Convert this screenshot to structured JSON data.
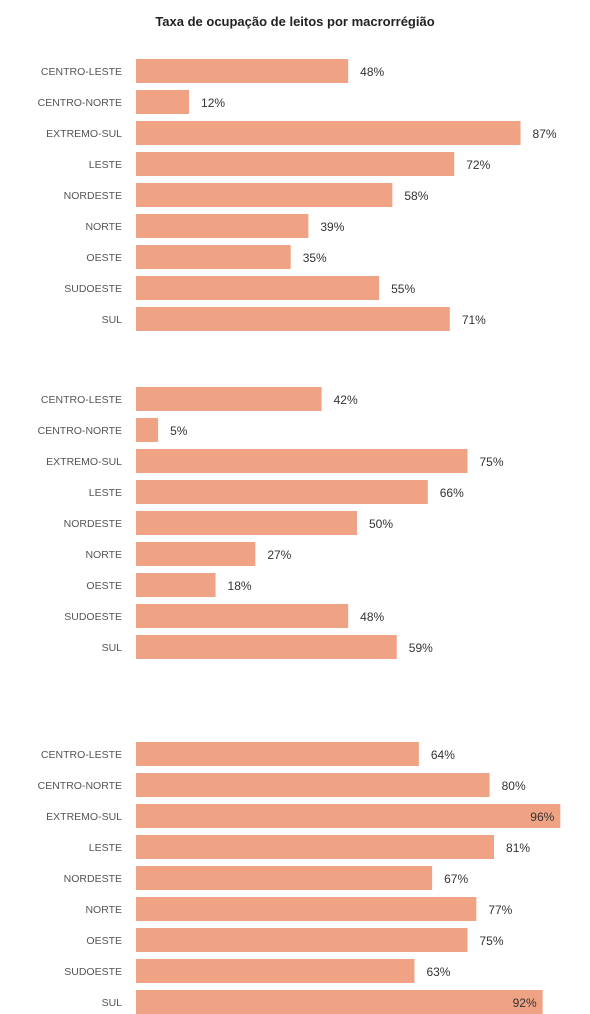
{
  "title": "Taxa de ocupação de leitos por macrorrégião",
  "colors": {
    "bar": "#F0A384",
    "label": "#555555",
    "value": "#333333"
  },
  "chart_data": [
    {
      "type": "bar",
      "orientation": "horizontal",
      "categories": [
        "CENTRO-LESTE",
        "CENTRO-NORTE",
        "EXTREMO-SUL",
        "LESTE",
        "NORDESTE",
        "NORTE",
        "OESTE",
        "SUDOESTE",
        "SUL"
      ],
      "values": [
        48,
        12,
        87,
        72,
        58,
        39,
        35,
        55,
        71
      ],
      "labels": [
        "48%",
        "12%",
        "87%",
        "72%",
        "58%",
        "39%",
        "35%",
        "55%",
        "71%"
      ],
      "xlim": [
        0,
        100
      ],
      "grid": false,
      "legend": "none"
    },
    {
      "type": "bar",
      "orientation": "horizontal",
      "categories": [
        "CENTRO-LESTE",
        "CENTRO-NORTE",
        "EXTREMO-SUL",
        "LESTE",
        "NORDESTE",
        "NORTE",
        "OESTE",
        "SUDOESTE",
        "SUL"
      ],
      "values": [
        42,
        5,
        75,
        66,
        50,
        27,
        18,
        48,
        59
      ],
      "labels": [
        "42%",
        "5%",
        "75%",
        "66%",
        "50%",
        "27%",
        "18%",
        "48%",
        "59%"
      ],
      "xlim": [
        0,
        100
      ],
      "grid": false,
      "legend": "none"
    },
    {
      "type": "bar",
      "orientation": "horizontal",
      "categories": [
        "CENTRO-LESTE",
        "CENTRO-NORTE",
        "EXTREMO-SUL",
        "LESTE",
        "NORDESTE",
        "NORTE",
        "OESTE",
        "SUDOESTE",
        "SUL"
      ],
      "values": [
        64,
        80,
        96,
        81,
        67,
        77,
        75,
        63,
        92
      ],
      "labels": [
        "64%",
        "80%",
        "96%",
        "81%",
        "67%",
        "77%",
        "75%",
        "63%",
        "92%"
      ],
      "xlim": [
        0,
        100
      ],
      "grid": false,
      "legend": "none"
    }
  ]
}
